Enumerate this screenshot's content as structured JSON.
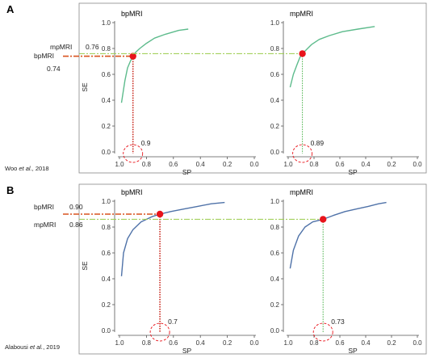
{
  "figure": {
    "panels": [
      {
        "letter": "A",
        "citation_author": "Woo",
        "citation_etal": "et al.",
        "citation_year": ", 2018",
        "left_labels": {
          "upper_name": "mpMRI",
          "upper_value": "0.76",
          "lower_name": "bpMRI",
          "lower_value": "0.74"
        }
      },
      {
        "letter": "B",
        "citation_author": "Alabousi",
        "citation_etal": "et al.",
        "citation_year": ", 2019",
        "left_labels": {
          "upper_name": "bpMRI",
          "upper_value": "0.90",
          "lower_name": "mpMRI",
          "lower_value": "0.86"
        }
      }
    ]
  },
  "colors": {
    "bpmri_curve_A": "#5dbb8c",
    "mpmri_curve_A": "#5dbb8c",
    "curve_B": "#4f72a8",
    "point": "#e8141b",
    "bpmri_line": "#d9531e",
    "mpmri_line": "#9acc4a",
    "vertical_bp_A": "#c8281e",
    "vertical_mp": "#44b044",
    "circle": "#e8141b",
    "frame": "#888888"
  },
  "chart_data": [
    {
      "type": "line",
      "panel": "A",
      "title": "bpMRI",
      "xlabel": "SP",
      "ylabel": "SE",
      "xlim": [
        1.0,
        0.0
      ],
      "ylim": [
        0.0,
        1.0
      ],
      "grid": false,
      "x_ticks": [
        "1.0",
        "0.8",
        "0.6",
        "0.4",
        "0.2",
        "0.0"
      ],
      "y_ticks": [
        "0.0",
        "0.2",
        "0.4",
        "0.6",
        "0.8",
        "1.0"
      ],
      "curve_color": "#5dbb8c",
      "series": [
        {
          "x": [
            0.985,
            0.96,
            0.94,
            0.92,
            0.9,
            0.88,
            0.85,
            0.8,
            0.74,
            0.66,
            0.56,
            0.49
          ],
          "y": [
            0.38,
            0.55,
            0.65,
            0.7,
            0.74,
            0.77,
            0.8,
            0.84,
            0.88,
            0.91,
            0.94,
            0.95
          ]
        }
      ],
      "operating_point": {
        "sp": 0.9,
        "se": 0.74
      },
      "sp_annotation": "0.9",
      "se_line_color": "#d9531e",
      "sp_line_color": "#c8281e"
    },
    {
      "type": "line",
      "panel": "A",
      "title": "mpMRI",
      "xlabel": "SP",
      "ylabel": "",
      "xlim": [
        1.0,
        0.0
      ],
      "ylim": [
        0.0,
        1.0
      ],
      "grid": false,
      "x_ticks": [
        "1.0",
        "0.8",
        "0.6",
        "0.4",
        "0.2",
        "0.0"
      ],
      "y_ticks": [
        "0.0",
        "0.2",
        "0.4",
        "0.6",
        "0.8",
        "1.0"
      ],
      "curve_color": "#5dbb8c",
      "series": [
        {
          "x": [
            0.985,
            0.96,
            0.93,
            0.91,
            0.89,
            0.86,
            0.82,
            0.76,
            0.68,
            0.58,
            0.46,
            0.33
          ],
          "y": [
            0.5,
            0.6,
            0.68,
            0.73,
            0.76,
            0.79,
            0.83,
            0.87,
            0.9,
            0.93,
            0.95,
            0.97
          ]
        }
      ],
      "operating_point": {
        "sp": 0.89,
        "se": 0.76
      },
      "sp_annotation": "0.89",
      "se_line_color": "#9acc4a",
      "sp_line_color": "#44b044"
    },
    {
      "type": "line",
      "panel": "B",
      "title": "bpMRI",
      "xlabel": "SP",
      "ylabel": "SE",
      "xlim": [
        1.0,
        0.0
      ],
      "ylim": [
        0.0,
        1.0
      ],
      "grid": false,
      "x_ticks": [
        "1.0",
        "0.8",
        "0.6",
        "0.4",
        "0.2",
        "0.0"
      ],
      "y_ticks": [
        "0.0",
        "0.2",
        "0.4",
        "0.6",
        "0.8",
        "1.0"
      ],
      "curve_color": "#4f72a8",
      "series": [
        {
          "x": [
            0.985,
            0.97,
            0.94,
            0.9,
            0.84,
            0.76,
            0.7,
            0.62,
            0.52,
            0.42,
            0.32,
            0.22
          ],
          "y": [
            0.42,
            0.6,
            0.71,
            0.78,
            0.84,
            0.88,
            0.9,
            0.92,
            0.94,
            0.96,
            0.98,
            0.99
          ]
        }
      ],
      "operating_point": {
        "sp": 0.7,
        "se": 0.9
      },
      "sp_annotation": "0.7",
      "se_line_color": "#d9531e",
      "sp_line_color": "#c8281e"
    },
    {
      "type": "line",
      "panel": "B",
      "title": "mpMRI",
      "xlabel": "SP",
      "ylabel": "",
      "xlim": [
        1.0,
        0.0
      ],
      "ylim": [
        0.0,
        1.0
      ],
      "grid": false,
      "x_ticks": [
        "1.0",
        "0.8",
        "0.6",
        "0.4",
        "0.2",
        "0.0"
      ],
      "y_ticks": [
        "0.0",
        "0.2",
        "0.4",
        "0.6",
        "0.8",
        "1.0"
      ],
      "curve_color": "#4f72a8",
      "series": [
        {
          "x": [
            0.985,
            0.96,
            0.92,
            0.87,
            0.81,
            0.73,
            0.65,
            0.56,
            0.47,
            0.38,
            0.3,
            0.24
          ],
          "y": [
            0.48,
            0.62,
            0.73,
            0.8,
            0.84,
            0.86,
            0.89,
            0.92,
            0.94,
            0.96,
            0.98,
            0.99
          ]
        }
      ],
      "operating_point": {
        "sp": 0.73,
        "se": 0.86
      },
      "sp_annotation": "0.73",
      "se_line_color": "#9acc4a",
      "sp_line_color": "#44b044"
    }
  ]
}
